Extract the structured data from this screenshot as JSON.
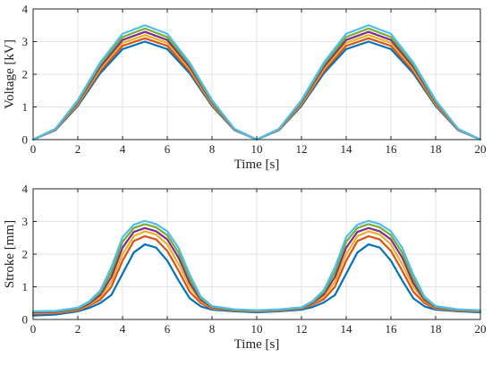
{
  "chart_data": [
    {
      "type": "line",
      "xlabel": "Time [s]",
      "ylabel": "Voltage [kV]",
      "xlim": [
        0,
        20
      ],
      "ylim": [
        0,
        4
      ],
      "xticks": [
        0,
        2,
        4,
        6,
        8,
        10,
        12,
        14,
        16,
        18,
        20
      ],
      "yticks": [
        0,
        1,
        2,
        3,
        4
      ],
      "grid": true,
      "series": [
        {
          "color": "#0072BD",
          "x": [
            0,
            1,
            2,
            3,
            4,
            5,
            6,
            7,
            8,
            9,
            10,
            11,
            12,
            13,
            14,
            15,
            16,
            17,
            18,
            19,
            20
          ],
          "y": [
            0,
            0.29,
            1.03,
            2.03,
            2.77,
            3.0,
            2.77,
            2.03,
            1.03,
            0.29,
            0,
            0.29,
            1.03,
            2.03,
            2.77,
            3.0,
            2.77,
            2.03,
            1.03,
            0.29,
            0
          ]
        },
        {
          "color": "#D95319",
          "x": [
            0,
            1,
            2,
            3,
            4,
            5,
            6,
            7,
            8,
            9,
            10,
            11,
            12,
            13,
            14,
            15,
            16,
            17,
            18,
            19,
            20
          ],
          "y": [
            0,
            0.3,
            1.07,
            2.1,
            2.87,
            3.1,
            2.87,
            2.1,
            1.07,
            0.3,
            0,
            0.3,
            1.07,
            2.1,
            2.87,
            3.1,
            2.87,
            2.1,
            1.07,
            0.3,
            0
          ]
        },
        {
          "color": "#EDB120",
          "x": [
            0,
            1,
            2,
            3,
            4,
            5,
            6,
            7,
            8,
            9,
            10,
            11,
            12,
            13,
            14,
            15,
            16,
            17,
            18,
            19,
            20
          ],
          "y": [
            0,
            0.31,
            1.1,
            2.16,
            2.96,
            3.2,
            2.96,
            2.16,
            1.1,
            0.31,
            0,
            0.31,
            1.1,
            2.16,
            2.96,
            3.2,
            2.96,
            2.16,
            1.1,
            0.31,
            0
          ]
        },
        {
          "color": "#7E2F8E",
          "x": [
            0,
            1,
            2,
            3,
            4,
            5,
            6,
            7,
            8,
            9,
            10,
            11,
            12,
            13,
            14,
            15,
            16,
            17,
            18,
            19,
            20
          ],
          "y": [
            0,
            0.32,
            1.14,
            2.23,
            3.05,
            3.3,
            3.05,
            2.23,
            1.14,
            0.32,
            0,
            0.32,
            1.14,
            2.23,
            3.05,
            3.3,
            3.05,
            2.23,
            1.14,
            0.32,
            0
          ]
        },
        {
          "color": "#77AC30",
          "x": [
            0,
            1,
            2,
            3,
            4,
            5,
            6,
            7,
            8,
            9,
            10,
            11,
            12,
            13,
            14,
            15,
            16,
            17,
            18,
            19,
            20
          ],
          "y": [
            0,
            0.33,
            1.17,
            2.3,
            3.14,
            3.4,
            3.14,
            2.3,
            1.17,
            0.33,
            0,
            0.33,
            1.17,
            2.3,
            3.14,
            3.4,
            3.14,
            2.3,
            1.17,
            0.33,
            0
          ]
        },
        {
          "color": "#4DBEEE",
          "x": [
            0,
            1,
            2,
            3,
            4,
            5,
            6,
            7,
            8,
            9,
            10,
            11,
            12,
            13,
            14,
            15,
            16,
            17,
            18,
            19,
            20
          ],
          "y": [
            0,
            0.33,
            1.21,
            2.36,
            3.24,
            3.5,
            3.24,
            2.36,
            1.21,
            0.33,
            0,
            0.33,
            1.21,
            2.36,
            3.24,
            3.5,
            3.24,
            2.36,
            1.21,
            0.33,
            0
          ]
        }
      ]
    },
    {
      "type": "line",
      "xlabel": "Time [s]",
      "ylabel": "Stroke [mm]",
      "xlim": [
        0,
        20
      ],
      "ylim": [
        0,
        4
      ],
      "xticks": [
        0,
        2,
        4,
        6,
        8,
        10,
        12,
        14,
        16,
        18,
        20
      ],
      "yticks": [
        0,
        1,
        2,
        3,
        4
      ],
      "grid": true,
      "series": [
        {
          "color": "#0072BD",
          "x": [
            0,
            1,
            2,
            2.5,
            3,
            3.5,
            4,
            4.5,
            5,
            5.5,
            6,
            6.5,
            7,
            7.5,
            8,
            9,
            10,
            11,
            12,
            12.5,
            13,
            13.5,
            14,
            14.5,
            15,
            15.5,
            16,
            16.5,
            17,
            17.5,
            18,
            19,
            20
          ],
          "y": [
            0.12,
            0.15,
            0.25,
            0.35,
            0.5,
            0.75,
            1.4,
            2.05,
            2.3,
            2.2,
            1.8,
            1.2,
            0.65,
            0.4,
            0.3,
            0.25,
            0.22,
            0.25,
            0.3,
            0.38,
            0.52,
            0.75,
            1.4,
            2.05,
            2.3,
            2.2,
            1.8,
            1.2,
            0.65,
            0.4,
            0.3,
            0.25,
            0.22
          ]
        },
        {
          "color": "#D95319",
          "x": [
            0,
            1,
            2,
            2.5,
            3,
            3.5,
            4,
            4.5,
            5,
            5.5,
            6,
            6.5,
            7,
            7.5,
            8,
            9,
            10,
            11,
            12,
            12.5,
            13,
            13.5,
            14,
            14.5,
            15,
            15.5,
            16,
            16.5,
            17,
            17.5,
            18,
            19,
            20
          ],
          "y": [
            0.17,
            0.19,
            0.28,
            0.42,
            0.6,
            1.0,
            1.8,
            2.4,
            2.55,
            2.45,
            2.1,
            1.5,
            0.85,
            0.5,
            0.33,
            0.27,
            0.24,
            0.27,
            0.33,
            0.45,
            0.62,
            1.0,
            1.8,
            2.4,
            2.55,
            2.45,
            2.1,
            1.5,
            0.85,
            0.5,
            0.33,
            0.27,
            0.24
          ]
        },
        {
          "color": "#EDB120",
          "x": [
            0,
            1,
            2,
            2.5,
            3,
            3.5,
            4,
            4.5,
            5,
            5.5,
            6,
            6.5,
            7,
            7.5,
            8,
            9,
            10,
            11,
            12,
            12.5,
            13,
            13.5,
            14,
            14.5,
            15,
            15.5,
            16,
            16.5,
            17,
            17.5,
            18,
            19,
            20
          ],
          "y": [
            0.2,
            0.21,
            0.3,
            0.45,
            0.68,
            1.15,
            2.0,
            2.55,
            2.7,
            2.6,
            2.3,
            1.7,
            1.0,
            0.56,
            0.35,
            0.28,
            0.25,
            0.28,
            0.34,
            0.48,
            0.7,
            1.15,
            2.0,
            2.55,
            2.7,
            2.6,
            2.3,
            1.7,
            1.0,
            0.56,
            0.35,
            0.28,
            0.25
          ]
        },
        {
          "color": "#7E2F8E",
          "x": [
            0,
            1,
            2,
            2.5,
            3,
            3.5,
            4,
            4.5,
            5,
            5.5,
            6,
            6.5,
            7,
            7.5,
            8,
            9,
            10,
            11,
            12,
            12.5,
            13,
            13.5,
            14,
            14.5,
            15,
            15.5,
            16,
            16.5,
            17,
            17.5,
            18,
            19,
            20
          ],
          "y": [
            0.22,
            0.23,
            0.32,
            0.48,
            0.75,
            1.3,
            2.2,
            2.68,
            2.8,
            2.7,
            2.45,
            1.9,
            1.12,
            0.6,
            0.37,
            0.29,
            0.26,
            0.29,
            0.35,
            0.5,
            0.77,
            1.3,
            2.2,
            2.68,
            2.8,
            2.7,
            2.45,
            1.9,
            1.12,
            0.6,
            0.37,
            0.29,
            0.26
          ]
        },
        {
          "color": "#77AC30",
          "x": [
            0,
            1,
            2,
            2.5,
            3,
            3.5,
            4,
            4.5,
            5,
            5.5,
            6,
            6.5,
            7,
            7.5,
            8,
            9,
            10,
            11,
            12,
            12.5,
            13,
            13.5,
            14,
            14.5,
            15,
            15.5,
            16,
            16.5,
            17,
            17.5,
            18,
            19,
            20
          ],
          "y": [
            0.24,
            0.25,
            0.34,
            0.52,
            0.82,
            1.45,
            2.38,
            2.8,
            2.92,
            2.82,
            2.58,
            2.05,
            1.25,
            0.65,
            0.39,
            0.3,
            0.27,
            0.3,
            0.36,
            0.53,
            0.84,
            1.45,
            2.38,
            2.8,
            2.92,
            2.82,
            2.58,
            2.05,
            1.25,
            0.65,
            0.39,
            0.3,
            0.27
          ]
        },
        {
          "color": "#4DBEEE",
          "x": [
            0,
            1,
            2,
            2.5,
            3,
            3.5,
            4,
            4.5,
            5,
            5.5,
            6,
            6.5,
            7,
            7.5,
            8,
            9,
            10,
            11,
            12,
            12.5,
            13,
            13.5,
            14,
            14.5,
            15,
            15.5,
            16,
            16.5,
            17,
            17.5,
            18,
            19,
            20
          ],
          "y": [
            0.25,
            0.26,
            0.36,
            0.55,
            0.88,
            1.6,
            2.52,
            2.9,
            3.02,
            2.92,
            2.7,
            2.2,
            1.38,
            0.7,
            0.41,
            0.31,
            0.28,
            0.31,
            0.37,
            0.56,
            0.9,
            1.6,
            2.52,
            2.9,
            3.02,
            2.92,
            2.7,
            2.2,
            1.38,
            0.7,
            0.41,
            0.31,
            0.28
          ]
        }
      ]
    }
  ]
}
